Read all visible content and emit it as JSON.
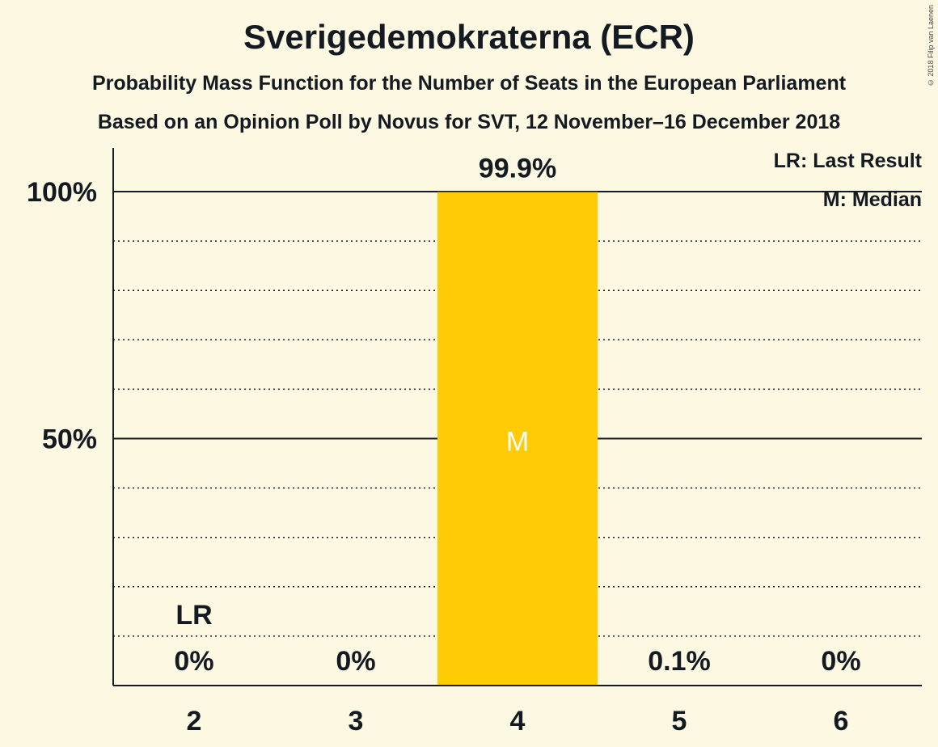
{
  "title": "Sverigedemokraterna (ECR)",
  "subtitle1": "Probability Mass Function for the Number of Seats in the European Parliament",
  "subtitle2": "Based on an Opinion Poll by Novus for SVT, 12 November–16 December 2018",
  "copyright": "© 2018 Filip van Laenen",
  "legend": {
    "lr": "LR: Last Result",
    "m": "M: Median"
  },
  "colors": {
    "bar": "#ffcb05",
    "background": "#fdf8e1",
    "text": "#141a22"
  },
  "chart_data": {
    "type": "bar",
    "categories": [
      "2",
      "3",
      "4",
      "5",
      "6"
    ],
    "values": [
      0,
      0,
      99.9,
      0.1,
      0
    ],
    "value_labels": [
      "0%",
      "0%",
      "99.9%",
      "0.1%",
      "0%"
    ],
    "ylim": [
      0,
      100
    ],
    "yticks": [
      {
        "value": 50,
        "label": "50%"
      },
      {
        "value": 100,
        "label": "100%"
      }
    ],
    "minor_gridlines": [
      10,
      20,
      30,
      40,
      60,
      70,
      80,
      90
    ],
    "last_result": {
      "category": "2",
      "label": "LR"
    },
    "median": {
      "category": "4",
      "label": "M"
    }
  }
}
